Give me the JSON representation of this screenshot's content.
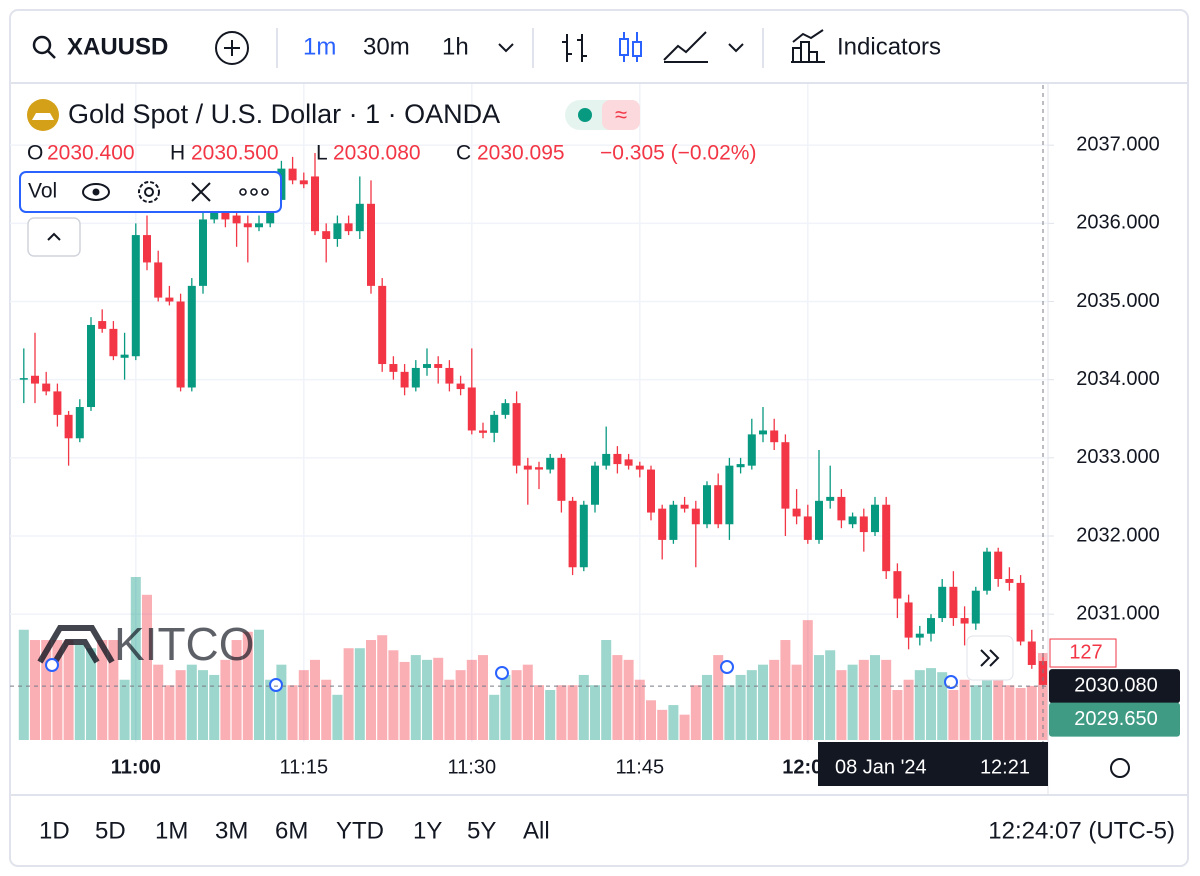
{
  "toolbar": {
    "symbol": "XAUUSD",
    "intervals": [
      "1m",
      "30m",
      "1h"
    ],
    "indicators": "Indicators"
  },
  "chart_data": {
    "type": "candlestick",
    "title": "Gold Spot / U.S. Dollar · 1 · OANDA",
    "legend": [
      {
        "key": "O",
        "text": "2030.400"
      },
      {
        "key": "H",
        "text": "2030.500"
      },
      {
        "key": "L",
        "text": "2030.080"
      },
      {
        "key": "C",
        "text": "2030.095"
      }
    ],
    "change": "−0.305 (−0.02%)",
    "indicator": "Vol",
    "watermark": "KITCO",
    "up_color": "#089981",
    "down_color": "#f23645",
    "ylim": [
      2029.39,
      2037.77
    ],
    "yticks": [
      {
        "value": 2031,
        "label": "2031.000"
      },
      {
        "value": 2032,
        "label": "2032.000"
      },
      {
        "value": 2033,
        "label": "2033.000"
      },
      {
        "value": 2034,
        "label": "2034.000"
      },
      {
        "value": 2035,
        "label": "2035.000"
      },
      {
        "value": 2036,
        "label": "2036.000"
      },
      {
        "value": 2037,
        "label": "2037.000"
      }
    ],
    "grid": true,
    "x": [
      null,
      null,
      null,
      null,
      null,
      null,
      null,
      null,
      null,
      null,
      "11:00",
      null,
      null,
      null,
      null,
      null,
      null,
      null,
      null,
      null,
      null,
      null,
      null,
      null,
      null,
      "11:15",
      null,
      null,
      null,
      null,
      null,
      null,
      null,
      null,
      null,
      null,
      null,
      null,
      null,
      null,
      "11:30",
      null,
      null,
      null,
      null,
      null,
      null,
      null,
      null,
      null,
      null,
      null,
      null,
      null,
      null,
      "11:45",
      null,
      null,
      null,
      null,
      null,
      null,
      null,
      null,
      null,
      null,
      null,
      null,
      null,
      null,
      "12:00",
      null,
      null,
      null,
      null,
      null,
      null,
      null,
      null,
      null,
      null,
      null,
      null,
      null,
      null,
      null,
      null,
      null,
      null,
      null,
      null,
      null
    ],
    "candles": [
      [
        2034.0,
        2034.4,
        2033.7,
        2034.02
      ],
      [
        2034.05,
        2034.6,
        2033.7,
        2033.95
      ],
      [
        2033.95,
        2034.1,
        2033.8,
        2033.85
      ],
      [
        2033.85,
        2033.95,
        2033.4,
        2033.55
      ],
      [
        2033.55,
        2033.6,
        2032.9,
        2033.25
      ],
      [
        2033.25,
        2033.75,
        2033.2,
        2033.65
      ],
      [
        2033.65,
        2034.8,
        2033.6,
        2034.7
      ],
      [
        2034.75,
        2034.9,
        2034.6,
        2034.65
      ],
      [
        2034.65,
        2034.75,
        2034.25,
        2034.3
      ],
      [
        2034.28,
        2034.6,
        2034.0,
        2034.32
      ],
      [
        2034.3,
        2036.0,
        2034.25,
        2035.85
      ],
      [
        2035.85,
        2036.1,
        2035.4,
        2035.5
      ],
      [
        2035.5,
        2035.65,
        2035.0,
        2035.05
      ],
      [
        2035.05,
        2035.2,
        2034.95,
        2035.0
      ],
      [
        2035.0,
        2035.1,
        2033.85,
        2033.9
      ],
      [
        2033.9,
        2035.3,
        2033.85,
        2035.2
      ],
      [
        2035.2,
        2036.15,
        2035.1,
        2036.05
      ],
      [
        2036.05,
        2036.3,
        2036.0,
        2036.15
      ],
      [
        2036.15,
        2036.25,
        2035.95,
        2036.05
      ],
      [
        2036.1,
        2036.2,
        2035.7,
        2036.0
      ],
      [
        2036.0,
        2036.1,
        2035.5,
        2035.95
      ],
      [
        2035.95,
        2036.1,
        2035.9,
        2036.0
      ],
      [
        2036.0,
        2036.4,
        2035.95,
        2036.3
      ],
      [
        2036.3,
        2036.8,
        2036.25,
        2036.7
      ],
      [
        2036.7,
        2036.85,
        2036.5,
        2036.55
      ],
      [
        2036.55,
        2036.65,
        2036.45,
        2036.5
      ],
      [
        2036.6,
        2036.9,
        2035.85,
        2035.9
      ],
      [
        2035.9,
        2036.0,
        2035.5,
        2035.8
      ],
      [
        2035.8,
        2036.1,
        2035.7,
        2036.0
      ],
      [
        2036.0,
        2036.1,
        2035.85,
        2035.9
      ],
      [
        2035.9,
        2036.6,
        2035.8,
        2036.25
      ],
      [
        2036.25,
        2036.55,
        2035.1,
        2035.2
      ],
      [
        2035.2,
        2035.3,
        2034.1,
        2034.2
      ],
      [
        2034.2,
        2034.3,
        2034.0,
        2034.1
      ],
      [
        2034.1,
        2034.2,
        2033.8,
        2033.9
      ],
      [
        2033.9,
        2034.25,
        2033.85,
        2034.15
      ],
      [
        2034.15,
        2034.4,
        2034.05,
        2034.2
      ],
      [
        2034.2,
        2034.3,
        2033.95,
        2034.15
      ],
      [
        2034.15,
        2034.25,
        2033.85,
        2033.95
      ],
      [
        2033.95,
        2034.05,
        2033.8,
        2033.88
      ],
      [
        2033.9,
        2034.4,
        2033.3,
        2033.35
      ],
      [
        2033.35,
        2033.45,
        2033.25,
        2033.32
      ],
      [
        2033.32,
        2033.6,
        2033.2,
        2033.55
      ],
      [
        2033.55,
        2033.75,
        2033.5,
        2033.7
      ],
      [
        2033.7,
        2033.85,
        2032.8,
        2032.9
      ],
      [
        2032.9,
        2033.0,
        2032.4,
        2032.85
      ],
      [
        2032.88,
        2032.95,
        2032.6,
        2032.85
      ],
      [
        2032.85,
        2033.05,
        2032.8,
        2033.0
      ],
      [
        2033.0,
        2033.05,
        2032.3,
        2032.45
      ],
      [
        2032.45,
        2032.5,
        2031.5,
        2031.6
      ],
      [
        2031.6,
        2032.45,
        2031.55,
        2032.4
      ],
      [
        2032.4,
        2032.95,
        2032.3,
        2032.9
      ],
      [
        2032.9,
        2033.4,
        2032.85,
        2033.05
      ],
      [
        2033.05,
        2033.15,
        2032.8,
        2032.92
      ],
      [
        2032.98,
        2033.05,
        2032.85,
        2032.9
      ],
      [
        2032.9,
        2032.95,
        2032.75,
        2032.85
      ],
      [
        2032.85,
        2032.9,
        2032.2,
        2032.3
      ],
      [
        2032.35,
        2032.4,
        2031.7,
        2031.95
      ],
      [
        2031.95,
        2032.45,
        2031.9,
        2032.4
      ],
      [
        2032.4,
        2032.5,
        2032.3,
        2032.35
      ],
      [
        2032.35,
        2032.45,
        2031.6,
        2032.15
      ],
      [
        2032.15,
        2032.7,
        2032.1,
        2032.65
      ],
      [
        2032.65,
        2032.8,
        2032.1,
        2032.15
      ],
      [
        2032.15,
        2033.0,
        2031.95,
        2032.9
      ],
      [
        2032.88,
        2033.0,
        2032.8,
        2032.92
      ],
      [
        2032.9,
        2033.5,
        2032.85,
        2033.3
      ],
      [
        2033.3,
        2033.65,
        2033.2,
        2033.35
      ],
      [
        2033.35,
        2033.5,
        2033.1,
        2033.2
      ],
      [
        2033.2,
        2033.3,
        2032.0,
        2032.35
      ],
      [
        2032.35,
        2032.6,
        2032.15,
        2032.25
      ],
      [
        2032.25,
        2032.4,
        2031.9,
        2031.95
      ],
      [
        2031.95,
        2033.1,
        2031.9,
        2032.45
      ],
      [
        2032.45,
        2032.9,
        2032.35,
        2032.5
      ],
      [
        2032.5,
        2032.6,
        2032.1,
        2032.2
      ],
      [
        2032.15,
        2032.3,
        2032.1,
        2032.25
      ],
      [
        2032.25,
        2032.35,
        2031.8,
        2032.05
      ],
      [
        2032.05,
        2032.5,
        2032.0,
        2032.4
      ],
      [
        2032.4,
        2032.5,
        2031.45,
        2031.55
      ],
      [
        2031.55,
        2031.65,
        2030.95,
        2031.2
      ],
      [
        2031.15,
        2031.25,
        2030.55,
        2030.7
      ],
      [
        2030.7,
        2030.85,
        2030.6,
        2030.75
      ],
      [
        2030.75,
        2031.0,
        2030.65,
        2030.95
      ],
      [
        2030.95,
        2031.45,
        2030.9,
        2031.35
      ],
      [
        2031.35,
        2031.55,
        2030.85,
        2030.95
      ],
      [
        2030.95,
        2031.1,
        2030.6,
        2030.88
      ],
      [
        2030.88,
        2031.35,
        2030.8,
        2031.3
      ],
      [
        2031.3,
        2031.85,
        2031.25,
        2031.8
      ],
      [
        2031.8,
        2031.85,
        2031.35,
        2031.45
      ],
      [
        2031.45,
        2031.6,
        2031.3,
        2031.4
      ],
      [
        2031.4,
        2031.5,
        2030.6,
        2030.65
      ],
      [
        2030.65,
        2030.8,
        2030.3,
        2030.35
      ],
      [
        2030.4,
        2030.5,
        2030.08,
        2030.095
      ]
    ],
    "volume": {
      "values": [
        161,
        146,
        146,
        146,
        146,
        139,
        134,
        146,
        146,
        88,
        238,
        212,
        110,
        80,
        102,
        110,
        102,
        95,
        117,
        146,
        158,
        161,
        88,
        110,
        80,
        102,
        117,
        88,
        66,
        134,
        134,
        146,
        153,
        131,
        114,
        124,
        117,
        120,
        88,
        102,
        117,
        124,
        66,
        95,
        102,
        110,
        80,
        73,
        80,
        80,
        95,
        80,
        146,
        124,
        117,
        88,
        58,
        44,
        51,
        37,
        80,
        95,
        124,
        80,
        95,
        102,
        110,
        117,
        146,
        110,
        175,
        124,
        131,
        102,
        110,
        117,
        124,
        117,
        73,
        88,
        102,
        105,
        99,
        73,
        88,
        80,
        95,
        88,
        80,
        76,
        79,
        127
      ]
    },
    "price_markers": [
      {
        "value": 2030.08,
        "label": "2030.080",
        "color": "#131722"
      },
      {
        "value": 2029.65,
        "label": "2029.650",
        "color": "#3f9b84"
      }
    ],
    "crosshair": {
      "date": "08 Jan '24",
      "time": "12:21"
    }
  },
  "range_bar": {
    "ranges": [
      "1D",
      "5D",
      "1M",
      "3M",
      "6M",
      "YTD",
      "1Y",
      "5Y",
      "All"
    ],
    "clock": "12:24:07 (UTC-5)"
  }
}
